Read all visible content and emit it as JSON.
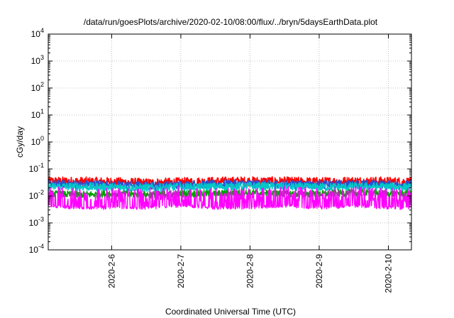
{
  "chart_data": {
    "type": "line",
    "title": "/data/run/goesPlots/archive/2020-02-10/08:00/flux/../bryn/5daysEarthData.plot",
    "xlabel": "Coordinated Universal Time (UTC)",
    "ylabel": "cGy/day",
    "x_range": [
      "2020-02-05T02:00",
      "2020-02-10T08:00"
    ],
    "x_ticks": [
      {
        "x": "2020-02-06T00:00",
        "label": "2020-2-6"
      },
      {
        "x": "2020-02-07T00:00",
        "label": "2020-2-7"
      },
      {
        "x": "2020-02-08T00:00",
        "label": "2020-2-8"
      },
      {
        "x": "2020-02-09T00:00",
        "label": "2020-2-9"
      },
      {
        "x": "2020-02-10T00:00",
        "label": "2020-2-10"
      }
    ],
    "y_scale": "log",
    "ylim": [
      0.0001,
      10000
    ],
    "y_ticks": [
      {
        "value": 0.0001,
        "base": "10",
        "exp": "-4"
      },
      {
        "value": 0.001,
        "base": "10",
        "exp": "-3"
      },
      {
        "value": 0.01,
        "base": "10",
        "exp": "-2"
      },
      {
        "value": 0.1,
        "base": "10",
        "exp": "-1"
      },
      {
        "value": 1,
        "base": "10",
        "exp": "0"
      },
      {
        "value": 10,
        "base": "10",
        "exp": "1"
      },
      {
        "value": 100,
        "base": "10",
        "exp": "2"
      },
      {
        "value": 1000,
        "base": "10",
        "exp": "3"
      },
      {
        "value": 10000,
        "base": "10",
        "exp": "4"
      }
    ],
    "grid": true,
    "legend": "none",
    "series": [
      {
        "color": "#ff0000",
        "typical": 0.032,
        "noise": 0.35,
        "x": [
          "2020-02-05T02:00",
          "2020-02-05T12:00",
          "2020-02-06T00:00",
          "2020-02-06T12:00",
          "2020-02-07T00:00",
          "2020-02-07T12:00",
          "2020-02-08T00:00",
          "2020-02-08T12:00",
          "2020-02-09T00:00",
          "2020-02-09T12:00",
          "2020-02-10T00:00",
          "2020-02-10T08:00"
        ],
        "y": [
          0.035,
          0.034,
          0.033,
          0.03,
          0.032,
          0.034,
          0.035,
          0.034,
          0.033,
          0.035,
          0.034,
          0.033
        ]
      },
      {
        "color": "#2a4fd6",
        "typical": 0.026,
        "noise": 0.3,
        "x": [
          "2020-02-05T02:00",
          "2020-02-05T12:00",
          "2020-02-06T00:00",
          "2020-02-06T12:00",
          "2020-02-07T00:00",
          "2020-02-07T12:00",
          "2020-02-08T00:00",
          "2020-02-08T12:00",
          "2020-02-09T00:00",
          "2020-02-09T12:00",
          "2020-02-10T00:00",
          "2020-02-10T08:00"
        ],
        "y": [
          0.028,
          0.027,
          0.026,
          0.024,
          0.026,
          0.027,
          0.028,
          0.027,
          0.026,
          0.027,
          0.027,
          0.026
        ]
      },
      {
        "color": "#00c8c8",
        "typical": 0.022,
        "noise": 0.3,
        "x": [
          "2020-02-05T02:00",
          "2020-02-05T12:00",
          "2020-02-06T00:00",
          "2020-02-06T12:00",
          "2020-02-07T00:00",
          "2020-02-07T12:00",
          "2020-02-08T00:00",
          "2020-02-08T12:00",
          "2020-02-09T00:00",
          "2020-02-09T12:00",
          "2020-02-10T00:00",
          "2020-02-10T08:00"
        ],
        "y": [
          0.022,
          0.022,
          0.021,
          0.02,
          0.021,
          0.022,
          0.023,
          0.022,
          0.021,
          0.022,
          0.022,
          0.021
        ]
      },
      {
        "color": "#00a000",
        "typical": 0.012,
        "noise": 0.25,
        "x": [
          "2020-02-05T02:00",
          "2020-02-05T12:00",
          "2020-02-06T00:00",
          "2020-02-06T12:00",
          "2020-02-07T00:00",
          "2020-02-07T12:00",
          "2020-02-08T00:00",
          "2020-02-08T12:00",
          "2020-02-09T00:00",
          "2020-02-09T12:00",
          "2020-02-10T00:00",
          "2020-02-10T08:00"
        ],
        "y": [
          0.012,
          0.011,
          0.012,
          0.011,
          0.012,
          0.012,
          0.013,
          0.012,
          0.012,
          0.013,
          0.012,
          0.012
        ]
      },
      {
        "color": "#ff00ff",
        "typical": 0.005,
        "noise": 1.0,
        "x": [
          "2020-02-05T02:00",
          "2020-02-05T12:00",
          "2020-02-06T00:00",
          "2020-02-06T12:00",
          "2020-02-07T00:00",
          "2020-02-07T12:00",
          "2020-02-08T00:00",
          "2020-02-08T12:00",
          "2020-02-09T00:00",
          "2020-02-09T12:00",
          "2020-02-10T00:00",
          "2020-02-10T08:00"
        ],
        "y": [
          0.006,
          0.005,
          0.005,
          0.005,
          0.006,
          0.005,
          0.005,
          0.006,
          0.005,
          0.006,
          0.005,
          0.005
        ]
      }
    ]
  }
}
